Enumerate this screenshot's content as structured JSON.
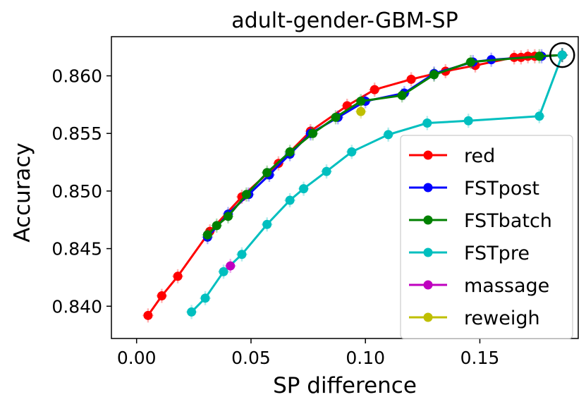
{
  "chart_data": {
    "type": "line",
    "title": "adult-gender-GBM-SP",
    "xlabel": "SP difference",
    "ylabel": "Accuracy",
    "xlim": [
      -0.011,
      0.193
    ],
    "ylim": [
      0.8372,
      0.8634
    ],
    "xticks": [
      0.0,
      0.05,
      0.1,
      0.15
    ],
    "xtick_labels": [
      "0.00",
      "0.05",
      "0.10",
      "0.15"
    ],
    "yticks": [
      0.84,
      0.845,
      0.85,
      0.855,
      0.86
    ],
    "ytick_labels": [
      "0.840",
      "0.845",
      "0.850",
      "0.855",
      "0.860"
    ],
    "legend_position": "lower-right",
    "annotation": {
      "label": "circled baseline point",
      "x": 0.186,
      "y": 0.8618
    },
    "series": [
      {
        "name": "red",
        "color": "#ff0000",
        "x": [
          0.005,
          0.011,
          0.018,
          0.032,
          0.046,
          0.062,
          0.076,
          0.092,
          0.104,
          0.12,
          0.135,
          0.148,
          0.165,
          0.168,
          0.171,
          0.174,
          0.186
        ],
        "y": [
          0.8392,
          0.8409,
          0.8426,
          0.8465,
          0.8495,
          0.8524,
          0.8552,
          0.8574,
          0.8588,
          0.8597,
          0.8604,
          0.8609,
          0.8616,
          0.8616,
          0.8617,
          0.8617,
          0.8618
        ]
      },
      {
        "name": "FSTpost",
        "color": "#0000ff",
        "x": [
          0.031,
          0.04,
          0.049,
          0.058,
          0.067,
          0.076,
          0.088,
          0.1,
          0.117,
          0.13,
          0.147,
          0.155,
          0.177,
          0.186
        ],
        "y": [
          0.846,
          0.848,
          0.8497,
          0.8514,
          0.8532,
          0.855,
          0.8564,
          0.8578,
          0.8585,
          0.8602,
          0.8612,
          0.8614,
          0.8617,
          0.8618
        ]
      },
      {
        "name": "FSTbatch",
        "color": "#008000",
        "x": [
          0.031,
          0.035,
          0.04,
          0.048,
          0.057,
          0.067,
          0.077,
          0.087,
          0.098,
          0.116,
          0.13,
          0.146,
          0.176,
          0.186
        ],
        "y": [
          0.8462,
          0.847,
          0.8478,
          0.8497,
          0.8516,
          0.8534,
          0.855,
          0.8564,
          0.8578,
          0.8583,
          0.8601,
          0.8612,
          0.8617,
          0.8618
        ]
      },
      {
        "name": "FSTpre",
        "color": "#00bfbf",
        "x": [
          0.024,
          0.03,
          0.038,
          0.046,
          0.057,
          0.067,
          0.073,
          0.083,
          0.094,
          0.11,
          0.127,
          0.145,
          0.176,
          0.186
        ],
        "y": [
          0.8395,
          0.8407,
          0.843,
          0.8445,
          0.8471,
          0.8492,
          0.8502,
          0.8517,
          0.8534,
          0.8549,
          0.8559,
          0.8561,
          0.8565,
          0.8618
        ]
      },
      {
        "name": "massage",
        "color": "#bf00bf",
        "x": [
          0.041
        ],
        "y": [
          0.8435
        ]
      },
      {
        "name": "reweigh",
        "color": "#bfbf00",
        "x": [
          0.098
        ],
        "y": [
          0.8569
        ]
      }
    ]
  }
}
